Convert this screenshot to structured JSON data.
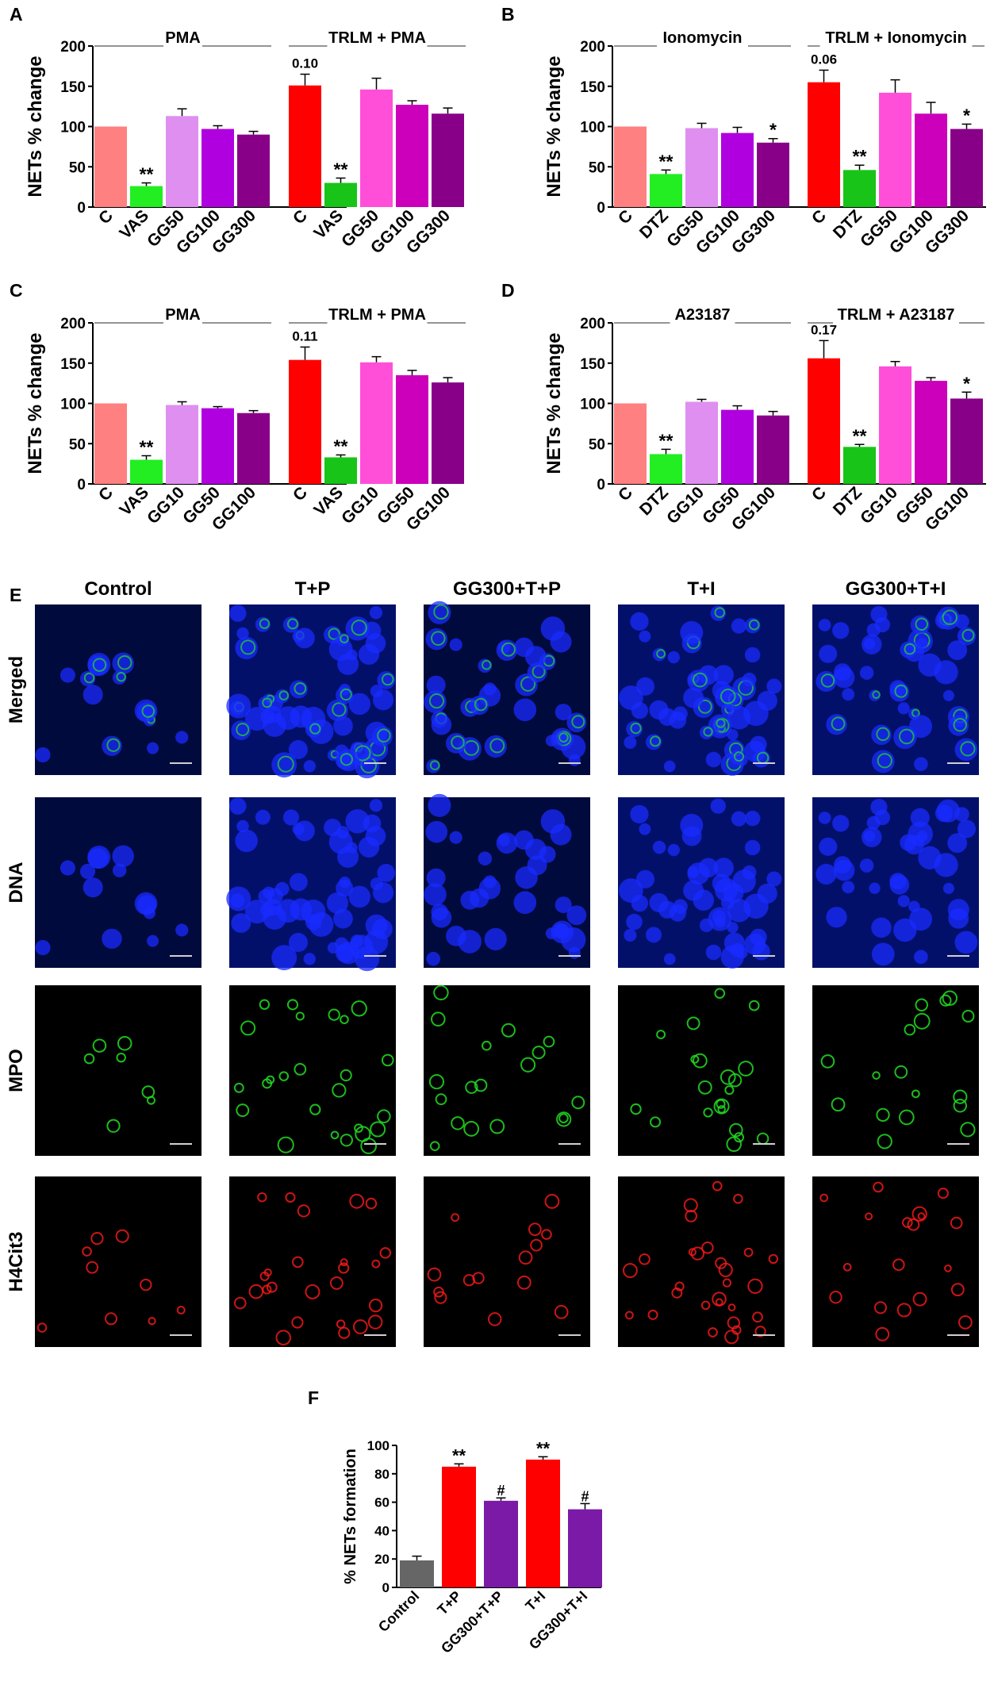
{
  "panel_letters": [
    "A",
    "B",
    "C",
    "D",
    "E",
    "F"
  ],
  "chart_data": [
    {
      "panel": "A",
      "type": "bar",
      "ylabel": "NETs % change",
      "ylim": [
        0,
        200
      ],
      "yticks": [
        0,
        50,
        100,
        150,
        200
      ],
      "groups": [
        {
          "title": "PMA",
          "categories": [
            "C",
            "VAS",
            "GG50",
            "GG100",
            "GG300"
          ],
          "values": [
            100,
            26,
            113,
            97,
            90
          ],
          "errors": [
            0,
            4,
            9,
            4,
            4
          ],
          "colors": [
            "#ff8080",
            "#22ee22",
            "#df8fef",
            "#b000df",
            "#880088"
          ],
          "annotations": [
            "",
            "**",
            "",
            "",
            ""
          ]
        },
        {
          "title": "TRLM + PMA",
          "categories": [
            "C",
            "VAS",
            "GG50",
            "GG100",
            "GG300"
          ],
          "values": [
            151,
            30,
            146,
            127,
            116
          ],
          "errors": [
            14,
            6,
            14,
            5,
            7
          ],
          "colors": [
            "#ff0000",
            "#18c418",
            "#ff4fd8",
            "#cc00bb",
            "#880088"
          ],
          "annotations": [
            "0.10",
            "**",
            "",
            "",
            ""
          ]
        }
      ]
    },
    {
      "panel": "B",
      "type": "bar",
      "ylabel": "NETs % change",
      "ylim": [
        0,
        200
      ],
      "yticks": [
        0,
        50,
        100,
        150,
        200
      ],
      "groups": [
        {
          "title": "Ionomycin",
          "categories": [
            "C",
            "DTZ",
            "GG50",
            "GG100",
            "GG300"
          ],
          "values": [
            100,
            41,
            98,
            92,
            80
          ],
          "errors": [
            0,
            5,
            6,
            7,
            5
          ],
          "colors": [
            "#ff8080",
            "#22ee22",
            "#df8fef",
            "#b000df",
            "#880088"
          ],
          "annotations": [
            "",
            "**",
            "",
            "",
            "*"
          ]
        },
        {
          "title": "TRLM + Ionomycin",
          "categories": [
            "C",
            "DTZ",
            "GG50",
            "GG100",
            "GG300"
          ],
          "values": [
            155,
            46,
            142,
            116,
            97
          ],
          "errors": [
            15,
            6,
            16,
            14,
            6
          ],
          "colors": [
            "#ff0000",
            "#18c418",
            "#ff4fd8",
            "#cc00bb",
            "#880088"
          ],
          "annotations": [
            "0.06",
            "**",
            "",
            "",
            "*"
          ]
        }
      ]
    },
    {
      "panel": "C",
      "type": "bar",
      "ylabel": "NETs % change",
      "ylim": [
        0,
        200
      ],
      "yticks": [
        0,
        50,
        100,
        150,
        200
      ],
      "groups": [
        {
          "title": "PMA",
          "categories": [
            "C",
            "VAS",
            "GG10",
            "GG50",
            "GG100"
          ],
          "values": [
            100,
            30,
            98,
            94,
            88
          ],
          "errors": [
            0,
            5,
            4,
            2,
            3
          ],
          "colors": [
            "#ff8080",
            "#22ee22",
            "#df8fef",
            "#b000df",
            "#880088"
          ],
          "annotations": [
            "",
            "**",
            "",
            "",
            ""
          ]
        },
        {
          "title": "TRLM + PMA",
          "categories": [
            "C",
            "VAS",
            "GG10",
            "GG50",
            "GG100"
          ],
          "values": [
            154,
            33,
            151,
            135,
            126
          ],
          "errors": [
            16,
            3,
            7,
            6,
            6
          ],
          "colors": [
            "#ff0000",
            "#18c418",
            "#ff4fd8",
            "#cc00bb",
            "#880088"
          ],
          "annotations": [
            "0.11",
            "**",
            "",
            "",
            ""
          ]
        }
      ]
    },
    {
      "panel": "D",
      "type": "bar",
      "ylabel": "NETs % change",
      "ylim": [
        0,
        200
      ],
      "yticks": [
        0,
        50,
        100,
        150,
        200
      ],
      "groups": [
        {
          "title": "A23187",
          "categories": [
            "C",
            "DTZ",
            "GG10",
            "GG50",
            "GG100"
          ],
          "values": [
            100,
            37,
            102,
            92,
            85
          ],
          "errors": [
            0,
            6,
            3,
            5,
            5
          ],
          "colors": [
            "#ff8080",
            "#22ee22",
            "#df8fef",
            "#b000df",
            "#880088"
          ],
          "annotations": [
            "",
            "**",
            "",
            "",
            ""
          ]
        },
        {
          "title": "TRLM + A23187",
          "categories": [
            "C",
            "DTZ",
            "GG10",
            "GG50",
            "GG100"
          ],
          "values": [
            156,
            46,
            146,
            128,
            106
          ],
          "errors": [
            22,
            3,
            6,
            4,
            8
          ],
          "colors": [
            "#ff0000",
            "#18c418",
            "#ff4fd8",
            "#cc00bb",
            "#880088"
          ],
          "annotations": [
            "0.17",
            "**",
            "",
            "",
            "*"
          ]
        }
      ]
    },
    {
      "panel": "F",
      "type": "bar",
      "ylabel": "% NETs formation",
      "ylim": [
        0,
        100
      ],
      "yticks": [
        0,
        20,
        40,
        60,
        80,
        100
      ],
      "categories": [
        "Control",
        "T+P",
        "GG300+T+P",
        "T+I",
        "GG300+T+I"
      ],
      "values": [
        19,
        85,
        61,
        90,
        55
      ],
      "errors": [
        3,
        2,
        2,
        2,
        4
      ],
      "colors": [
        "#666666",
        "#ff0000",
        "#7a1aa6",
        "#ff0000",
        "#7a1aa6"
      ],
      "annotations": [
        "",
        "**",
        "#",
        "**",
        "#"
      ]
    }
  ],
  "microscopy": {
    "columns": [
      "Control",
      "T+P",
      "GG300+T+P",
      "T+I",
      "GG300+T+I"
    ],
    "rows": [
      {
        "label": "Merged",
        "tint": "merged"
      },
      {
        "label": "DNA",
        "tint": "blue"
      },
      {
        "label": "MPO",
        "tint": "green"
      },
      {
        "label": "H4Cit3",
        "tint": "red"
      }
    ],
    "colors": {
      "dna": "#1a2bff",
      "mpo": "#22dd22",
      "h4cit3": "#ff1a1a",
      "background_merged": "#020c6a"
    }
  }
}
